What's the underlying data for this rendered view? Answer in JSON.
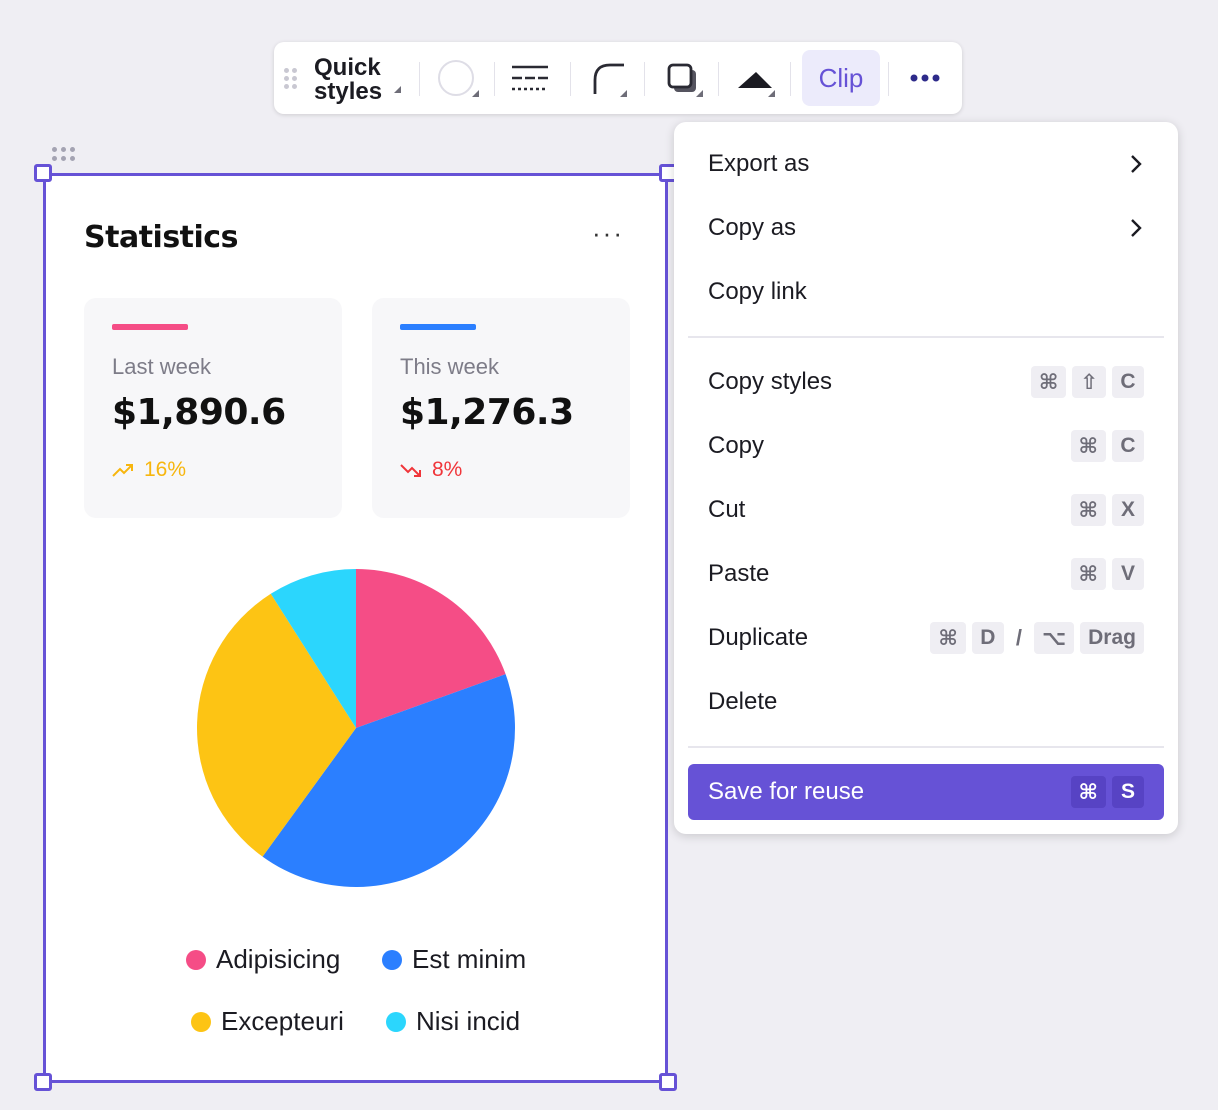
{
  "toolbar": {
    "quick_styles_line1": "Quick",
    "quick_styles_line2": "styles",
    "clip_label": "Clip",
    "icons": [
      "drag-handle-icon",
      "fill-color-icon",
      "stroke-style-icon",
      "corner-radius-icon",
      "shadow-icon",
      "arrow-shape-icon",
      "more-icon"
    ]
  },
  "card": {
    "title": "Statistics",
    "more_label": "···",
    "stats": [
      {
        "label": "Last week",
        "value": "$1,890.6",
        "trend": "16%",
        "direction": "up",
        "bar_color": "#f54d86",
        "trend_color": "#f7b60e"
      },
      {
        "label": "This week",
        "value": "$1,276.3",
        "trend": "8%",
        "direction": "down",
        "bar_color": "#2b7fff",
        "trend_color": "#f0353a"
      }
    ]
  },
  "chart_data": {
    "type": "pie",
    "slices": [
      {
        "name": "Adipisicing",
        "value": 19.5,
        "color": "#f54d86"
      },
      {
        "name": "Est minim",
        "value": 40.5,
        "color": "#2b7fff"
      },
      {
        "name": "Excepteuri",
        "value": 31.0,
        "color": "#fdc414"
      },
      {
        "name": "Nisi incid",
        "value": 9.0,
        "color": "#2bd6fd"
      }
    ],
    "legend_placement": "bottom"
  },
  "menu": {
    "items": [
      {
        "label": "Export as",
        "submenu": true
      },
      {
        "label": "Copy as",
        "submenu": true
      },
      {
        "label": "Copy link"
      },
      {
        "label": "Copy styles",
        "keys": [
          "⌘",
          "⇧",
          "C"
        ]
      },
      {
        "label": "Copy",
        "keys": [
          "⌘",
          "C"
        ]
      },
      {
        "label": "Cut",
        "keys": [
          "⌘",
          "X"
        ]
      },
      {
        "label": "Paste",
        "keys": [
          "⌘",
          "V"
        ]
      },
      {
        "label": "Duplicate",
        "keys": [
          "⌘",
          "D",
          "/",
          "⌥",
          "Drag"
        ]
      },
      {
        "label": "Delete"
      },
      {
        "label": "Save for reuse",
        "keys": [
          "⌘",
          "S"
        ],
        "primary": true
      }
    ],
    "accent_color": "#6652d6"
  }
}
